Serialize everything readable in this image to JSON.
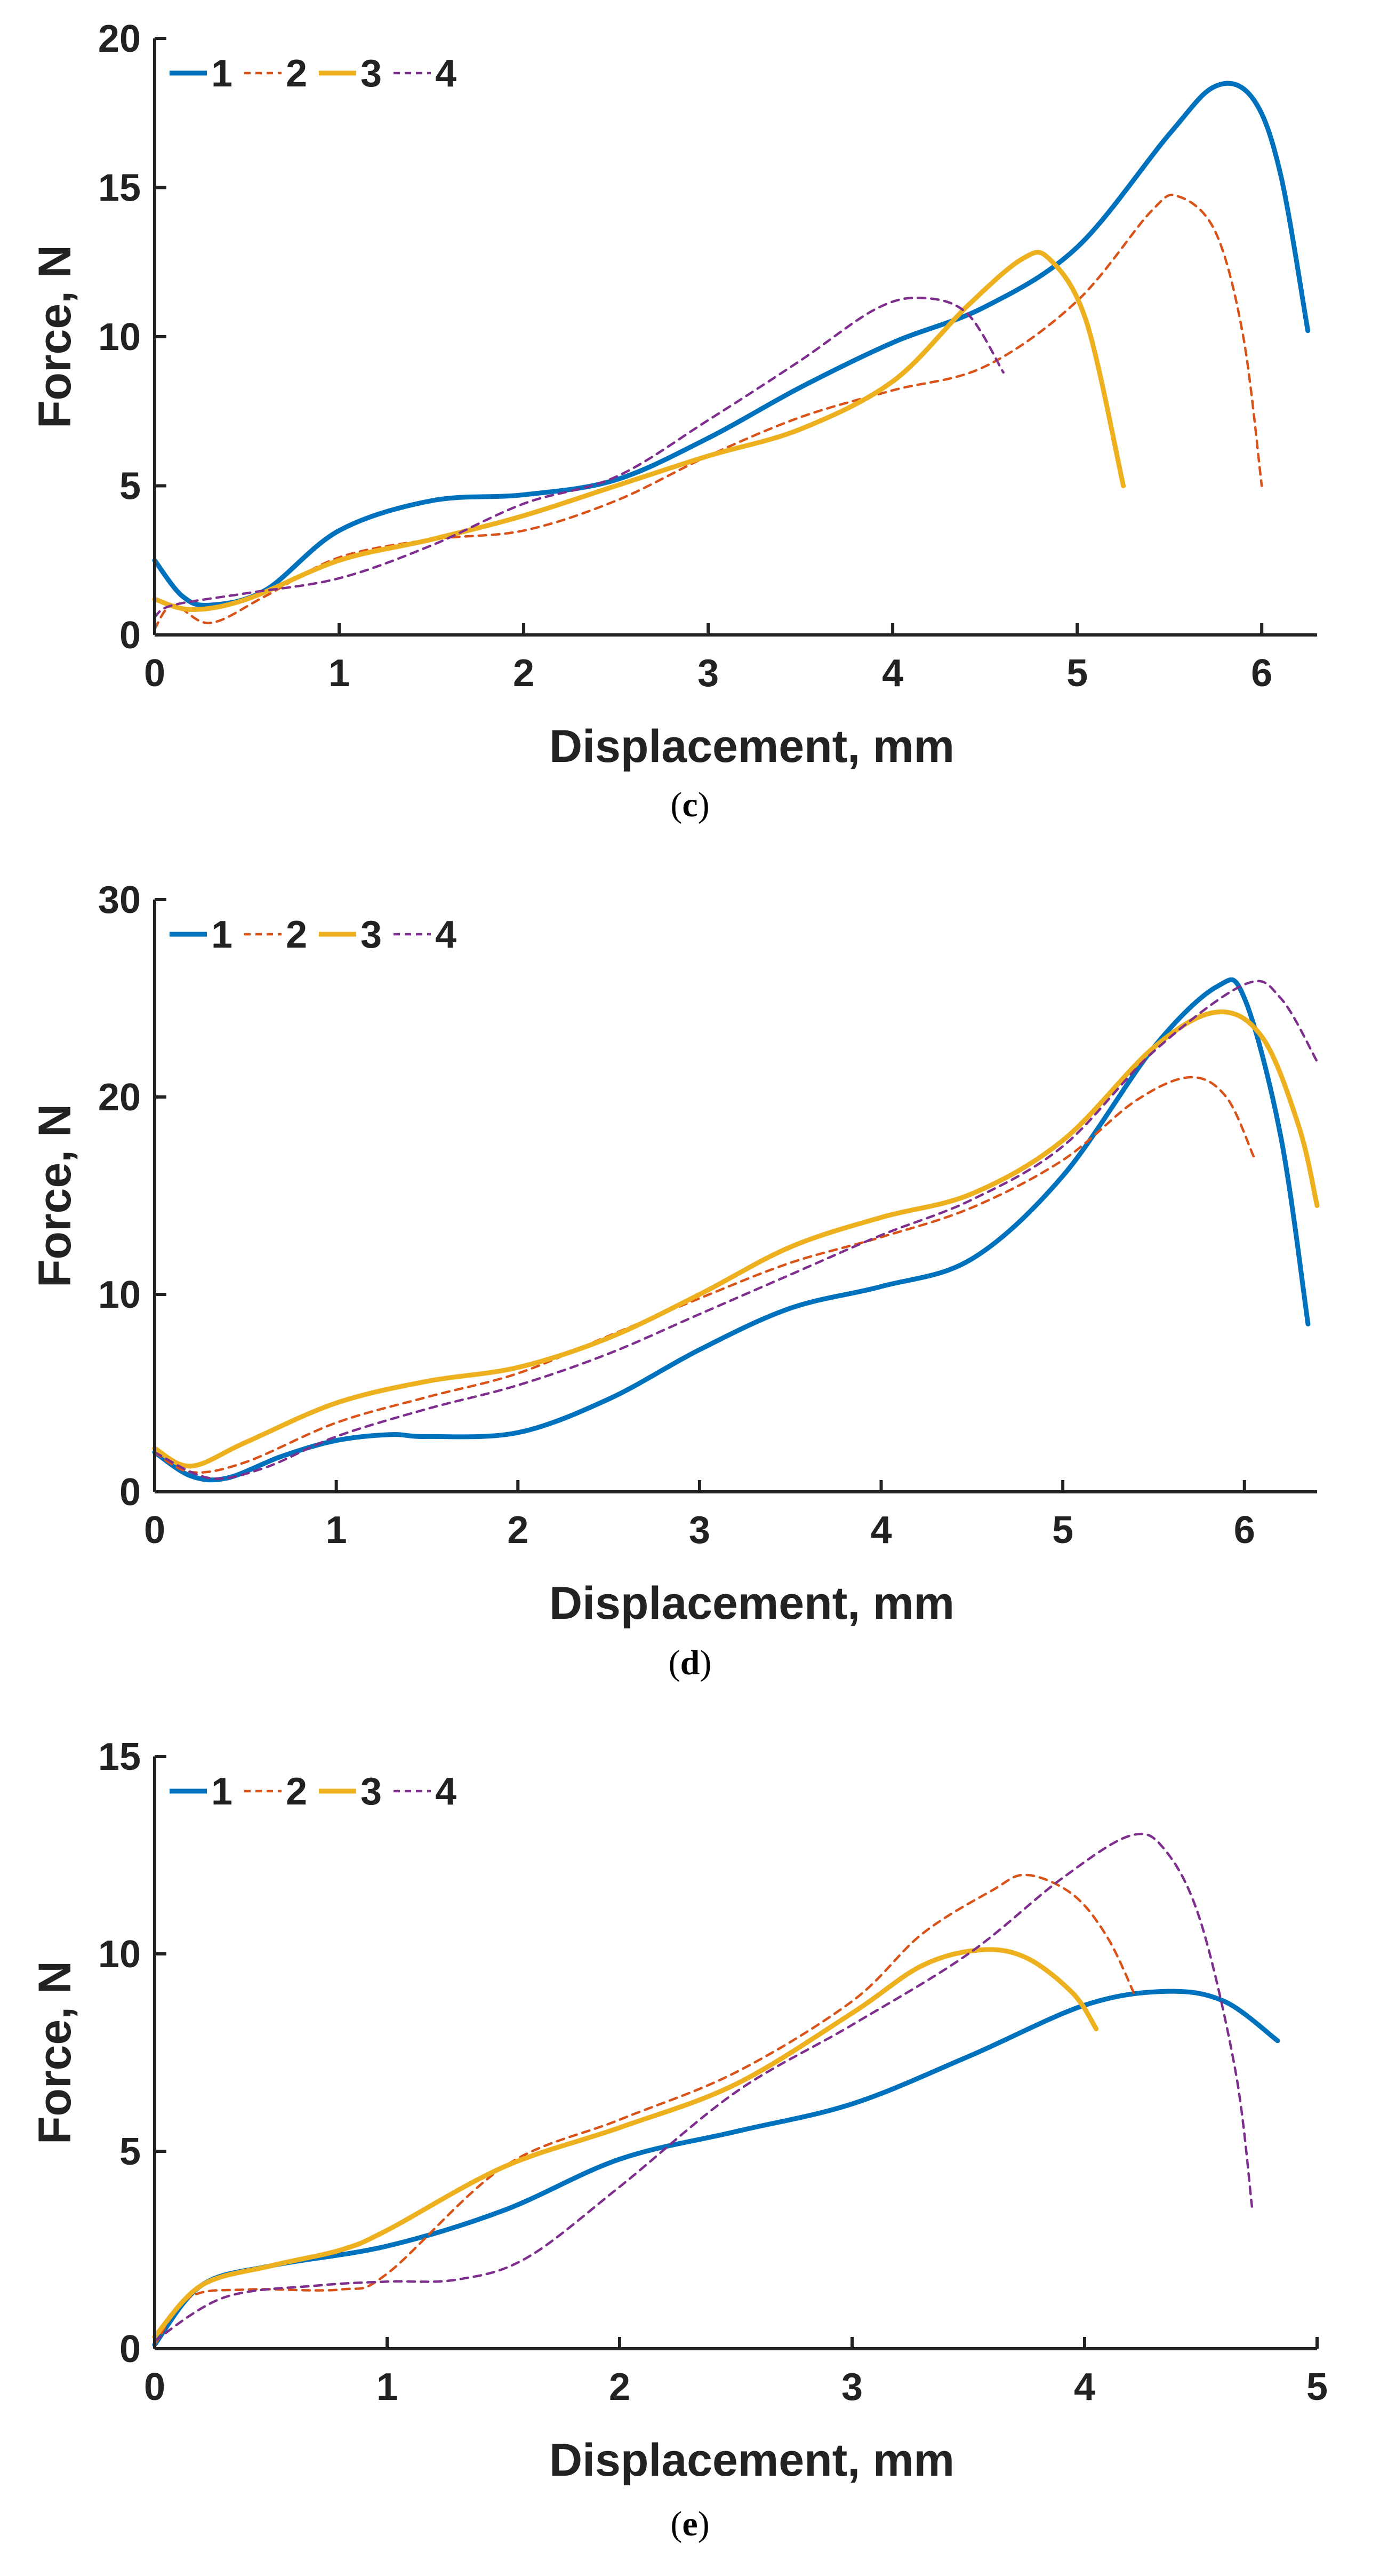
{
  "chart_data": [
    {
      "type": "line",
      "caption_letter": "c",
      "xlabel": "Displacement, mm",
      "ylabel": "Force, N",
      "xlim": [
        0,
        6.3
      ],
      "ylim": [
        0,
        20
      ],
      "xticks": [
        0,
        1,
        2,
        3,
        4,
        5,
        6
      ],
      "yticks": [
        0,
        5,
        10,
        15,
        20
      ],
      "legend": [
        "1",
        "2",
        "3",
        "4"
      ],
      "series": [
        {
          "name": "1",
          "points": [
            [
              0,
              2.5
            ],
            [
              0.15,
              1.3
            ],
            [
              0.3,
              1.0
            ],
            [
              0.6,
              1.5
            ],
            [
              1.0,
              3.5
            ],
            [
              1.5,
              4.5
            ],
            [
              2.0,
              4.7
            ],
            [
              2.5,
              5.2
            ],
            [
              3.0,
              6.6
            ],
            [
              3.5,
              8.3
            ],
            [
              4.0,
              9.8
            ],
            [
              4.5,
              11.0
            ],
            [
              5.0,
              13.0
            ],
            [
              5.5,
              16.8
            ],
            [
              5.75,
              18.4
            ],
            [
              5.95,
              18.0
            ],
            [
              6.1,
              15.5
            ],
            [
              6.25,
              10.2
            ]
          ]
        },
        {
          "name": "2",
          "points": [
            [
              0,
              0.2
            ],
            [
              0.1,
              1.0
            ],
            [
              0.3,
              0.4
            ],
            [
              0.6,
              1.3
            ],
            [
              1.0,
              2.6
            ],
            [
              1.5,
              3.2
            ],
            [
              2.0,
              3.5
            ],
            [
              2.5,
              4.5
            ],
            [
              3.0,
              6.0
            ],
            [
              3.5,
              7.3
            ],
            [
              4.0,
              8.2
            ],
            [
              4.5,
              9.0
            ],
            [
              5.0,
              11.2
            ],
            [
              5.4,
              14.2
            ],
            [
              5.55,
              14.7
            ],
            [
              5.75,
              13.5
            ],
            [
              5.9,
              10.0
            ],
            [
              6.0,
              5.0
            ]
          ]
        },
        {
          "name": "3",
          "points": [
            [
              0,
              1.2
            ],
            [
              0.2,
              0.85
            ],
            [
              0.5,
              1.2
            ],
            [
              1.0,
              2.5
            ],
            [
              1.5,
              3.2
            ],
            [
              2.0,
              4.0
            ],
            [
              2.5,
              5.0
            ],
            [
              3.0,
              6.0
            ],
            [
              3.5,
              6.9
            ],
            [
              4.0,
              8.5
            ],
            [
              4.4,
              11.0
            ],
            [
              4.7,
              12.6
            ],
            [
              4.85,
              12.6
            ],
            [
              5.05,
              10.5
            ],
            [
              5.25,
              5.0
            ]
          ]
        },
        {
          "name": "4",
          "points": [
            [
              0,
              0.6
            ],
            [
              0.1,
              1.0
            ],
            [
              0.5,
              1.4
            ],
            [
              1.0,
              1.9
            ],
            [
              1.5,
              3.0
            ],
            [
              2.0,
              4.4
            ],
            [
              2.5,
              5.3
            ],
            [
              3.0,
              7.2
            ],
            [
              3.5,
              9.2
            ],
            [
              3.9,
              10.9
            ],
            [
              4.15,
              11.3
            ],
            [
              4.4,
              10.8
            ],
            [
              4.6,
              8.8
            ]
          ]
        }
      ]
    },
    {
      "type": "line",
      "caption_letter": "d",
      "xlabel": "Displacement, mm",
      "ylabel": "Force, N",
      "xlim": [
        0,
        6.4
      ],
      "ylim": [
        0,
        30
      ],
      "xticks": [
        0,
        1,
        2,
        3,
        4,
        5,
        6
      ],
      "yticks": [
        0,
        10,
        20,
        30
      ],
      "legend": [
        "1",
        "2",
        "3",
        "4"
      ],
      "series": [
        {
          "name": "1",
          "points": [
            [
              0,
              2.0
            ],
            [
              0.2,
              0.8
            ],
            [
              0.4,
              0.7
            ],
            [
              0.7,
              1.8
            ],
            [
              1.0,
              2.6
            ],
            [
              1.3,
              2.9
            ],
            [
              1.5,
              2.8
            ],
            [
              2.0,
              3.0
            ],
            [
              2.5,
              4.7
            ],
            [
              3.0,
              7.2
            ],
            [
              3.5,
              9.3
            ],
            [
              4.0,
              10.4
            ],
            [
              4.5,
              11.8
            ],
            [
              5.0,
              16.0
            ],
            [
              5.5,
              22.5
            ],
            [
              5.85,
              25.6
            ],
            [
              6.0,
              25.0
            ],
            [
              6.2,
              18.0
            ],
            [
              6.35,
              8.5
            ]
          ]
        },
        {
          "name": "2",
          "points": [
            [
              0,
              2.0
            ],
            [
              0.2,
              1.0
            ],
            [
              0.5,
              1.5
            ],
            [
              1.0,
              3.5
            ],
            [
              1.5,
              4.8
            ],
            [
              2.0,
              6.0
            ],
            [
              2.5,
              7.9
            ],
            [
              3.0,
              9.8
            ],
            [
              3.5,
              11.6
            ],
            [
              4.0,
              12.9
            ],
            [
              4.5,
              14.4
            ],
            [
              5.0,
              16.8
            ],
            [
              5.4,
              19.8
            ],
            [
              5.7,
              21.0
            ],
            [
              5.9,
              20.0
            ],
            [
              6.05,
              17.0
            ]
          ]
        },
        {
          "name": "3",
          "points": [
            [
              0,
              2.2
            ],
            [
              0.2,
              1.3
            ],
            [
              0.5,
              2.5
            ],
            [
              1.0,
              4.5
            ],
            [
              1.5,
              5.6
            ],
            [
              2.0,
              6.3
            ],
            [
              2.5,
              7.8
            ],
            [
              3.0,
              10.0
            ],
            [
              3.5,
              12.4
            ],
            [
              4.0,
              13.9
            ],
            [
              4.5,
              15.1
            ],
            [
              5.0,
              17.8
            ],
            [
              5.5,
              22.5
            ],
            [
              5.85,
              24.3
            ],
            [
              6.1,
              23.0
            ],
            [
              6.3,
              18.5
            ],
            [
              6.4,
              14.5
            ]
          ]
        },
        {
          "name": "4",
          "points": [
            [
              0,
              2.0
            ],
            [
              0.3,
              0.7
            ],
            [
              0.6,
              1.2
            ],
            [
              1.0,
              2.8
            ],
            [
              1.5,
              4.2
            ],
            [
              2.0,
              5.4
            ],
            [
              2.5,
              7.0
            ],
            [
              3.0,
              9.0
            ],
            [
              3.5,
              11.0
            ],
            [
              4.0,
              13.0
            ],
            [
              4.5,
              14.8
            ],
            [
              5.0,
              17.5
            ],
            [
              5.5,
              22.3
            ],
            [
              6.0,
              25.7
            ],
            [
              6.2,
              25.0
            ],
            [
              6.4,
              21.8
            ]
          ]
        }
      ]
    },
    {
      "type": "line",
      "caption_letter": "e",
      "xlabel": "Displacement, mm",
      "ylabel": "Force, N",
      "xlim": [
        0,
        5
      ],
      "ylim": [
        0,
        15
      ],
      "xticks": [
        0,
        1,
        2,
        3,
        4,
        5
      ],
      "yticks": [
        0,
        5,
        10,
        15
      ],
      "legend": [
        "1",
        "2",
        "3",
        "4"
      ],
      "series": [
        {
          "name": "1",
          "points": [
            [
              0,
              0.1
            ],
            [
              0.2,
              1.6
            ],
            [
              0.5,
              2.1
            ],
            [
              1.0,
              2.6
            ],
            [
              1.5,
              3.5
            ],
            [
              2.0,
              4.8
            ],
            [
              2.5,
              5.5
            ],
            [
              3.0,
              6.2
            ],
            [
              3.5,
              7.4
            ],
            [
              4.0,
              8.7
            ],
            [
              4.35,
              9.05
            ],
            [
              4.6,
              8.8
            ],
            [
              4.83,
              7.8
            ]
          ]
        },
        {
          "name": "2",
          "points": [
            [
              0,
              0.1
            ],
            [
              0.15,
              1.3
            ],
            [
              0.4,
              1.5
            ],
            [
              0.8,
              1.5
            ],
            [
              1.0,
              1.9
            ],
            [
              1.5,
              4.6
            ],
            [
              2.0,
              5.8
            ],
            [
              2.5,
              7.0
            ],
            [
              3.0,
              8.8
            ],
            [
              3.3,
              10.5
            ],
            [
              3.6,
              11.6
            ],
            [
              3.75,
              12.0
            ],
            [
              3.95,
              11.5
            ],
            [
              4.1,
              10.4
            ],
            [
              4.22,
              8.9
            ]
          ]
        },
        {
          "name": "3",
          "points": [
            [
              0,
              0.3
            ],
            [
              0.2,
              1.6
            ],
            [
              0.5,
              2.1
            ],
            [
              0.8,
              2.5
            ],
            [
              1.0,
              3.0
            ],
            [
              1.5,
              4.6
            ],
            [
              2.0,
              5.6
            ],
            [
              2.5,
              6.7
            ],
            [
              3.0,
              8.5
            ],
            [
              3.3,
              9.7
            ],
            [
              3.55,
              10.1
            ],
            [
              3.75,
              9.9
            ],
            [
              3.95,
              9.0
            ],
            [
              4.05,
              8.1
            ]
          ]
        },
        {
          "name": "4",
          "points": [
            [
              0,
              0.2
            ],
            [
              0.3,
              1.3
            ],
            [
              0.7,
              1.6
            ],
            [
              1.0,
              1.7
            ],
            [
              1.3,
              1.75
            ],
            [
              1.6,
              2.3
            ],
            [
              2.0,
              4.1
            ],
            [
              2.5,
              6.5
            ],
            [
              3.0,
              8.2
            ],
            [
              3.5,
              10.0
            ],
            [
              3.9,
              11.9
            ],
            [
              4.2,
              13.0
            ],
            [
              4.35,
              12.6
            ],
            [
              4.5,
              10.8
            ],
            [
              4.65,
              7.0
            ],
            [
              4.72,
              3.6
            ]
          ]
        }
      ]
    }
  ],
  "colors": {
    "series_1": "#0072BD",
    "series_2": "#D95319",
    "series_3": "#EDB120",
    "series_4": "#7E2F8E",
    "axis": "#222222"
  }
}
